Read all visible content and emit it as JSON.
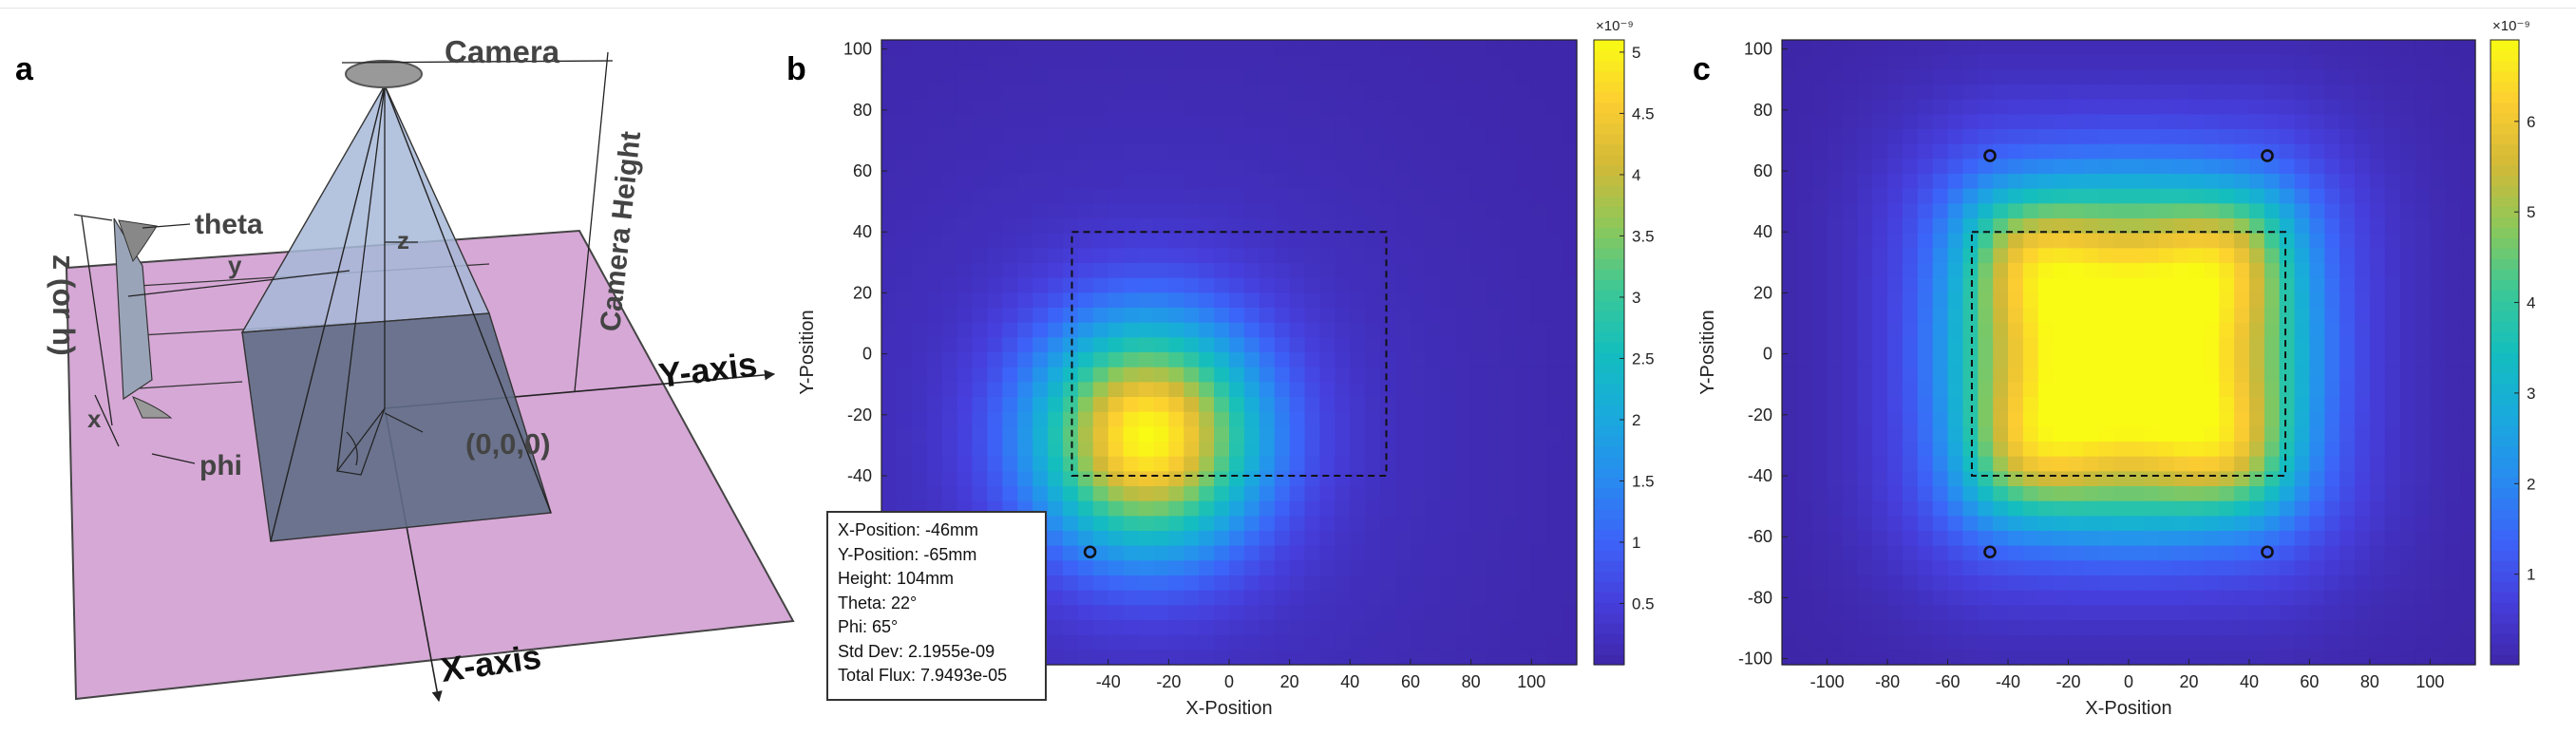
{
  "panels": {
    "a": {
      "letter": "a"
    },
    "b": {
      "letter": "b"
    },
    "c": {
      "letter": "c"
    }
  },
  "diagram": {
    "labels": {
      "camera": "Camera",
      "theta": "theta",
      "phi": "phi",
      "z_or_h": "z (or h)",
      "camera_height": "Camera Height",
      "y_axis": "Y-axis",
      "x_axis": "X-axis",
      "origin": "(0,0,0)",
      "z": "z",
      "y": "y",
      "x": "x"
    },
    "colors": {
      "plane": "#d6a8d6",
      "pyramid_front": "#5f6d86",
      "pyramid_side": "#a7b8d8",
      "camera": "#999999"
    }
  },
  "infobox": {
    "x_position": "X-Position:  -46mm",
    "y_position": "Y-Position:  -65mm",
    "height": "Height:  104mm",
    "theta": "Theta:  22°",
    "phi": "Phi:  65°",
    "std_dev": "Std Dev: 2.1955e-09",
    "total_flux": "Total Flux: 7.9493e-05"
  },
  "chart_data": [
    {
      "type": "heatmap",
      "panel": "b",
      "xlabel": "X-Position",
      "ylabel": "Y-Position",
      "xlim": [
        -115,
        115
      ],
      "ylim": [
        -102,
        103
      ],
      "xticks": [
        -40,
        -20,
        0,
        20,
        40,
        60,
        80,
        100
      ],
      "yticks": [
        -40,
        -20,
        0,
        20,
        40,
        60,
        80,
        100
      ],
      "colorbar": {
        "exponent": "×10⁻⁹",
        "min": 0,
        "max": 5.1,
        "ticks": [
          0.5,
          1,
          1.5,
          2,
          2.5,
          3,
          3.5,
          4,
          4.5,
          5
        ],
        "ticklabels": [
          "0.5",
          "1",
          "1.5",
          "2",
          "2.5",
          "3",
          "3.5",
          "4",
          "4.5",
          "5"
        ]
      },
      "sources": [
        {
          "x": -46,
          "y": -65
        }
      ],
      "peak": {
        "x": -27,
        "y": -27
      },
      "rect": {
        "x0": -52,
        "x1": 52,
        "y0": -40,
        "y1": 40
      },
      "colormap": "parula"
    },
    {
      "type": "heatmap",
      "panel": "c",
      "xlabel": "X-Position",
      "ylabel": "Y-Position",
      "xlim": [
        -115,
        115
      ],
      "ylim": [
        -102,
        103
      ],
      "xticks": [
        -100,
        -80,
        -60,
        -40,
        -20,
        0,
        20,
        40,
        60,
        80,
        100
      ],
      "yticks": [
        -100,
        -80,
        -60,
        -40,
        -20,
        0,
        20,
        40,
        60,
        80,
        100
      ],
      "colorbar": {
        "exponent": "×10⁻⁹",
        "min": 0,
        "max": 6.9,
        "ticks": [
          1,
          2,
          3,
          4,
          5,
          6
        ],
        "ticklabels": [
          "1",
          "2",
          "3",
          "4",
          "5",
          "6"
        ]
      },
      "sources": [
        {
          "x": -46,
          "y": 65
        },
        {
          "x": 46,
          "y": 65
        },
        {
          "x": -46,
          "y": -65
        },
        {
          "x": 46,
          "y": -65
        }
      ],
      "rect": {
        "x0": -52,
        "x1": 52,
        "y0": -40,
        "y1": 40
      },
      "colormap": "parula"
    }
  ]
}
